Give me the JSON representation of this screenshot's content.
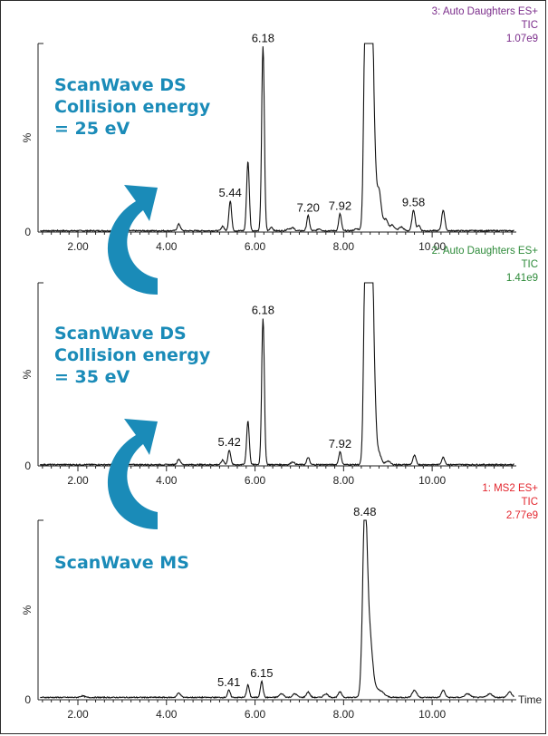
{
  "chart_data": [
    {
      "type": "line",
      "info": [
        "3: Auto Daughters ES+",
        "TIC",
        "1.07e9"
      ],
      "info_color": "#7b2d8b",
      "ylabel": "%",
      "xlabel": "",
      "xlim": [
        1.1,
        11.9
      ],
      "ylim": [
        0,
        100
      ],
      "xticks": [
        2.0,
        4.0,
        6.0,
        8.0,
        10.0
      ],
      "xtick_labels": [
        "2.00",
        "4.00",
        "6.00",
        "8.00",
        "10.00"
      ],
      "ytick_labels": [
        "0"
      ],
      "annotations": [
        {
          "x": 6.18,
          "text": "6.18"
        },
        {
          "x": 5.44,
          "text": "5.44"
        },
        {
          "x": 7.2,
          "text": "7.20"
        },
        {
          "x": 7.92,
          "text": "7.92"
        },
        {
          "x": 9.58,
          "text": "9.58"
        }
      ],
      "peaks": [
        [
          4.28,
          3.5,
          0.035
        ],
        [
          5.27,
          2.5,
          0.03
        ],
        [
          5.44,
          16,
          0.03
        ],
        [
          5.84,
          37,
          0.03
        ],
        [
          6.18,
          98,
          0.03
        ],
        [
          6.37,
          2,
          0.03
        ],
        [
          6.75,
          1,
          0.04
        ],
        [
          6.85,
          1.5,
          0.04
        ],
        [
          7.2,
          8,
          0.03
        ],
        [
          7.92,
          9,
          0.03
        ],
        [
          7.45,
          1,
          0.04
        ],
        [
          8.3,
          1,
          0.05
        ],
        [
          8.5,
          135,
          0.04
        ],
        [
          8.6,
          135,
          0.04
        ],
        [
          8.66,
          70,
          0.05
        ],
        [
          8.8,
          21,
          0.05
        ],
        [
          8.95,
          6,
          0.05
        ],
        [
          9.1,
          3,
          0.05
        ],
        [
          9.3,
          2,
          0.05
        ],
        [
          9.58,
          11,
          0.035
        ],
        [
          9.7,
          3,
          0.03
        ],
        [
          10.25,
          11,
          0.035
        ]
      ],
      "baseline": 0.4
    },
    {
      "type": "line",
      "info": [
        "2: Auto Daughters ES+",
        "TIC",
        "1.41e9"
      ],
      "info_color": "#2e8b3a",
      "ylabel": "%",
      "xlabel": "",
      "xlim": [
        1.1,
        11.9
      ],
      "ylim": [
        0,
        100
      ],
      "xticks": [
        2.0,
        4.0,
        6.0,
        8.0,
        10.0
      ],
      "xtick_labels": [
        "2.00",
        "4.00",
        "6.00",
        "8.00",
        "10.00"
      ],
      "ytick_labels": [
        "0"
      ],
      "annotations": [
        {
          "x": 6.18,
          "text": "6.18"
        },
        {
          "x": 5.42,
          "text": "5.42"
        },
        {
          "x": 7.92,
          "text": "7.92"
        }
      ],
      "peaks": [
        [
          4.28,
          3,
          0.035
        ],
        [
          5.27,
          2.5,
          0.03
        ],
        [
          5.42,
          8,
          0.03
        ],
        [
          5.84,
          24,
          0.03
        ],
        [
          6.18,
          80,
          0.03
        ],
        [
          6.85,
          1.5,
          0.04
        ],
        [
          7.2,
          4,
          0.03
        ],
        [
          7.92,
          7,
          0.03
        ],
        [
          8.5,
          135,
          0.04
        ],
        [
          8.6,
          135,
          0.04
        ],
        [
          8.66,
          70,
          0.05
        ],
        [
          8.8,
          6,
          0.05
        ],
        [
          9.0,
          2,
          0.05
        ],
        [
          9.6,
          5,
          0.035
        ],
        [
          10.25,
          4,
          0.035
        ]
      ],
      "baseline": 0.4
    },
    {
      "type": "line",
      "info": [
        "1: MS2 ES+",
        "TIC",
        "2.77e9"
      ],
      "info_color": "#e3262e",
      "ylabel": "%",
      "xlabel": "Time",
      "xlim": [
        1.1,
        11.9
      ],
      "ylim": [
        0,
        100
      ],
      "xticks": [
        2.0,
        4.0,
        6.0,
        8.0,
        10.0
      ],
      "xtick_labels": [
        "2.00",
        "4.00",
        "6.00",
        "8.00",
        "10.00"
      ],
      "ytick_labels": [
        "0"
      ],
      "annotations": [
        {
          "x": 8.48,
          "text": "8.48"
        },
        {
          "x": 5.41,
          "text": "5.41"
        },
        {
          "x": 6.15,
          "text": "6.15"
        }
      ],
      "peaks": [
        [
          2.1,
          0.8,
          0.05
        ],
        [
          4.28,
          2.5,
          0.04
        ],
        [
          5.41,
          4,
          0.03
        ],
        [
          5.84,
          7,
          0.03
        ],
        [
          6.15,
          9,
          0.03
        ],
        [
          6.6,
          2,
          0.05
        ],
        [
          6.9,
          2,
          0.05
        ],
        [
          7.2,
          3,
          0.04
        ],
        [
          7.6,
          2,
          0.05
        ],
        [
          7.92,
          3,
          0.04
        ],
        [
          8.48,
          98,
          0.05
        ],
        [
          8.58,
          35,
          0.07
        ],
        [
          8.8,
          4,
          0.1
        ],
        [
          9.6,
          4,
          0.05
        ],
        [
          10.25,
          4,
          0.04
        ],
        [
          10.8,
          2,
          0.06
        ],
        [
          11.3,
          2,
          0.06
        ],
        [
          11.75,
          3,
          0.05
        ]
      ],
      "baseline": 1.0
    }
  ],
  "annotations": {
    "top_label": [
      "ScanWave DS",
      "Collision energy",
      "= 25 eV"
    ],
    "middle_label": [
      "ScanWave DS",
      "Collision energy",
      "= 35 eV"
    ],
    "bottom_label": "ScanWave MS",
    "color": "#1a8bb8"
  }
}
